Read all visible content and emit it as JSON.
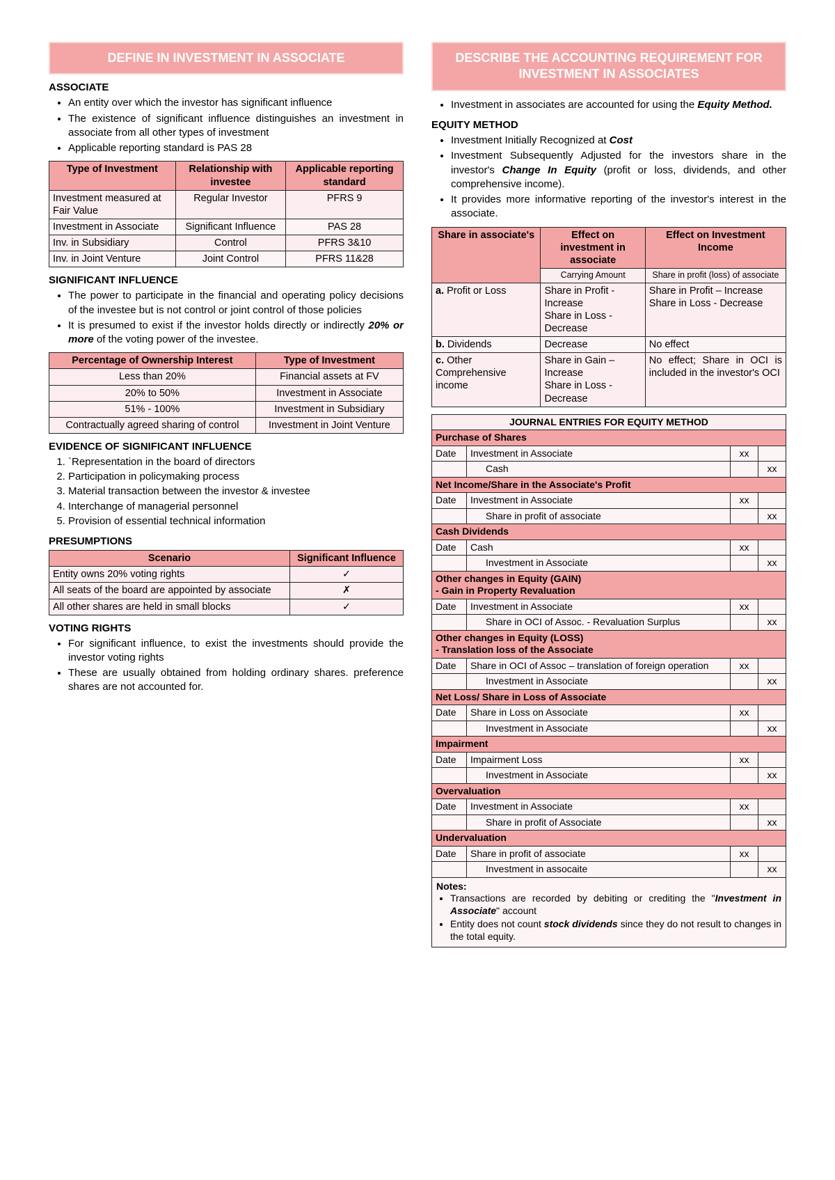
{
  "left": {
    "header": "DEFINE IN INVESTMENT IN ASSOCIATE",
    "associate_title": "ASSOCIATE",
    "associate_bullets": [
      "An entity over which the investor has significant influence",
      "The existence of significant influence distinguishes an investment in associate from all other types of investment",
      "Applicable reporting standard is PAS 28"
    ],
    "t1": {
      "h1": "Type of Investment",
      "h2": "Relationship with investee",
      "h3": "Applicable reporting standard",
      "rows": [
        [
          "Investment measured at Fair Value",
          "Regular Investor",
          "PFRS 9"
        ],
        [
          "Investment in Associate",
          "Significant Influence",
          "PAS 28"
        ],
        [
          "Inv. in Subsidiary",
          "Control",
          "PFRS 3&10"
        ],
        [
          "Inv. in Joint Venture",
          "Joint Control",
          "PFRS 11&28"
        ]
      ]
    },
    "sig_title": "SIGNIFICANT INFLUENCE",
    "sig_bullets": [
      "The power to participate in the financial and operating policy decisions of the investee but is not control or joint control of those policies",
      "It is presumed to exist if the investor holds directly or indirectly 20% or more of the voting power of the investee."
    ],
    "t2": {
      "h1": "Percentage of Ownership Interest",
      "h2": "Type of Investment",
      "rows": [
        [
          "Less than 20%",
          "Financial assets at FV"
        ],
        [
          "20% to 50%",
          "Investment in Associate"
        ],
        [
          "51% - 100%",
          "Investment in Subsidiary"
        ],
        [
          "Contractually agreed sharing of control",
          "Investment in Joint Venture"
        ]
      ]
    },
    "ev_title": "EVIDENCE OF SIGNIFICANT INFLUENCE",
    "ev_items": [
      "`Representation in the board of directors",
      "Participation in policymaking process",
      "Material transaction between the investor & investee",
      "Interchange of managerial personnel",
      "Provision of essential technical information"
    ],
    "pres_title": "PRESUMPTIONS",
    "t3": {
      "h1": "Scenario",
      "h2": "Significant Influence",
      "rows": [
        [
          "Entity owns 20% voting rights",
          "✓"
        ],
        [
          "All seats of the board are appointed by associate",
          "✗"
        ],
        [
          "All other shares are held in small blocks",
          "✓"
        ]
      ]
    },
    "vr_title": "VOTING RIGHTS",
    "vr_bullets": [
      "For significant influence, to exist the investments should provide the investor voting rights",
      "These are usually obtained from holding ordinary shares. preference shares are not accounted for."
    ]
  },
  "right": {
    "header": "DESCRIBE THE ACCOUNTING REQUIREMENT FOR INVESTMENT IN ASSOCIATES",
    "top_bullets": [
      "Investment in associates are accounted for using the Equity Method."
    ],
    "eq_title": "EQUITY METHOD",
    "eq_bullets": [
      "Investment Initially Recognized at Cost",
      "Investment Subsequently Adjusted for the investors share in the investor's Change In Equity (profit or loss, dividends, and other comprehensive income).",
      "It provides more informative reporting of the investor's interest in the associate."
    ],
    "t4": {
      "h1": "Share in associate's",
      "h2": "Effect on investment in associate",
      "h3": "Effect on Investment Income",
      "sub2": "Carrying Amount",
      "sub3": "Share in profit (loss) of associate",
      "rows": [
        [
          "a. Profit or Loss",
          "Share in Profit - Increase\nShare in Loss - Decrease",
          "Share in Profit – Increase\nShare in Loss - Decrease"
        ],
        [
          "b. Dividends",
          "Decrease",
          "No effect"
        ],
        [
          "c. Other Comprehensive income",
          "Share in Gain – Increase\nShare in Loss - Decrease",
          "No effect; Share in OCI is included in the investor's OCI"
        ]
      ]
    },
    "je_title": "JOURNAL ENTRIES FOR EQUITY METHOD",
    "je": [
      {
        "section": "Purchase of Shares",
        "lines": [
          [
            "Date",
            "Investment in Associate",
            "xx",
            ""
          ],
          [
            "",
            "Cash",
            "",
            "xx"
          ]
        ]
      },
      {
        "section": "Net Income/Share in the Associate's Profit",
        "lines": [
          [
            "Date",
            "Investment in Associate",
            "xx",
            ""
          ],
          [
            "",
            "Share in profit of associate",
            "",
            "xx"
          ]
        ]
      },
      {
        "section": "Cash Dividends",
        "lines": [
          [
            "Date",
            "Cash",
            "xx",
            ""
          ],
          [
            "",
            "Investment in Associate",
            "",
            "xx"
          ]
        ]
      },
      {
        "section": "Other changes in Equity (GAIN)\n-    Gain in Property Revaluation",
        "lines": [
          [
            "Date",
            "Investment in Associate",
            "xx",
            ""
          ],
          [
            "",
            "Share in OCI of Assoc. - Revaluation Surplus",
            "",
            "xx"
          ]
        ]
      },
      {
        "section": "Other changes in Equity (LOSS)\n-    Translation loss of the Associate",
        "lines": [
          [
            "Date",
            "Share in OCI of Assoc – translation of foreign operation",
            "xx",
            ""
          ],
          [
            "",
            "Investment in Associate",
            "",
            "xx"
          ]
        ]
      },
      {
        "section": "Net Loss/ Share in Loss of Associate",
        "lines": [
          [
            "Date",
            "Share in Loss on Associate",
            "xx",
            ""
          ],
          [
            "",
            "Investment in Associate",
            "",
            "xx"
          ]
        ]
      },
      {
        "section": "Impairment",
        "lines": [
          [
            "Date",
            "Impairment Loss",
            "xx",
            ""
          ],
          [
            "",
            "Investment in Associate",
            "",
            "xx"
          ]
        ]
      },
      {
        "section": "Overvaluation",
        "lines": [
          [
            "Date",
            "Investment in Associate",
            "xx",
            ""
          ],
          [
            "",
            "Share in profit of Associate",
            "",
            "xx"
          ]
        ]
      },
      {
        "section": "Undervaluation",
        "lines": [
          [
            "Date",
            "Share in profit of associate",
            "xx",
            ""
          ],
          [
            "",
            "Investment in assocaite",
            "",
            "xx"
          ]
        ]
      }
    ],
    "notes_title": "Notes:",
    "notes": [
      "Transactions are recorded by debiting or crediting the \"Investment in Associate\" account",
      "Entity does not count stock dividends since they do not result to changes in the total equity."
    ]
  },
  "colors": {
    "header_bg": "#f4a5a5",
    "header_border": "#f9d6d6",
    "row_light": "#fceef0",
    "row_lighter": "#fdf4f6"
  }
}
